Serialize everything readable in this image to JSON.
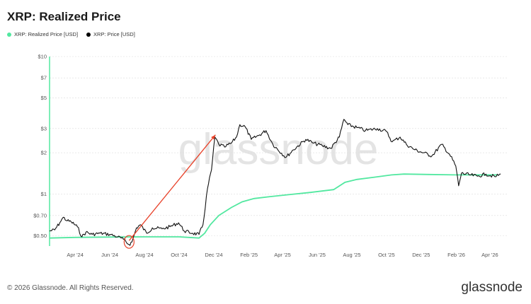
{
  "header": {
    "title": "XRP: Realized Price"
  },
  "legend": [
    {
      "label": "XRP: Realized Price [USD]",
      "color": "#52e8a0"
    },
    {
      "label": "XRP: Price [USD]",
      "color": "#000000"
    }
  ],
  "footer": {
    "copyright": "© 2026 Glassnode. All Rights Reserved.",
    "brand": "glassnode",
    "watermark": "glassnode"
  },
  "colors": {
    "realized": "#52e8a0",
    "price": "#111111",
    "annotation": "#e8422a"
  },
  "chart_data": {
    "type": "line",
    "title": "XRP: Realized Price",
    "y_scale": "log",
    "ylim": [
      0.42,
      10
    ],
    "y_ticks": [
      {
        "value": 10,
        "label": "$10"
      },
      {
        "value": 7,
        "label": "$7"
      },
      {
        "value": 5,
        "label": "$5"
      },
      {
        "value": 3,
        "label": "$3"
      },
      {
        "value": 2,
        "label": "$2"
      },
      {
        "value": 1,
        "label": "$1"
      },
      {
        "value": 0.7,
        "label": "$0.70"
      },
      {
        "value": 0.5,
        "label": "$0.50"
      }
    ],
    "xlim": [
      "2024-02-16",
      "2026-05-01"
    ],
    "x_ticks": [
      {
        "date": "2024-04-01",
        "label": "Apr '24"
      },
      {
        "date": "2024-06-01",
        "label": "Jun '24"
      },
      {
        "date": "2024-08-01",
        "label": "Aug '24"
      },
      {
        "date": "2024-10-01",
        "label": "Oct '24"
      },
      {
        "date": "2024-12-01",
        "label": "Dec '24"
      },
      {
        "date": "2025-02-01",
        "label": "Feb '25"
      },
      {
        "date": "2025-04-01",
        "label": "Apr '25"
      },
      {
        "date": "2025-06-01",
        "label": "Jun '25"
      },
      {
        "date": "2025-08-01",
        "label": "Aug '25"
      },
      {
        "date": "2025-10-01",
        "label": "Oct '25"
      },
      {
        "date": "2025-12-01",
        "label": "Dec '25"
      },
      {
        "date": "2026-02-01",
        "label": "Feb '26"
      },
      {
        "date": "2026-04-01",
        "label": "Apr '26"
      }
    ],
    "series": [
      {
        "name": "XRP: Realized Price [USD]",
        "color": "#52e8a0",
        "points": [
          [
            "2024-02-16",
            0.48
          ],
          [
            "2024-04-01",
            0.485
          ],
          [
            "2024-06-01",
            0.488
          ],
          [
            "2024-08-01",
            0.49
          ],
          [
            "2024-10-01",
            0.49
          ],
          [
            "2024-11-05",
            0.48
          ],
          [
            "2024-11-15",
            0.52
          ],
          [
            "2024-11-25",
            0.6
          ],
          [
            "2024-12-10",
            0.7
          ],
          [
            "2025-01-01",
            0.8
          ],
          [
            "2025-01-20",
            0.88
          ],
          [
            "2025-02-10",
            0.93
          ],
          [
            "2025-03-10",
            0.96
          ],
          [
            "2025-04-10",
            0.99
          ],
          [
            "2025-05-20",
            1.03
          ],
          [
            "2025-06-30",
            1.08
          ],
          [
            "2025-07-20",
            1.22
          ],
          [
            "2025-08-10",
            1.28
          ],
          [
            "2025-09-10",
            1.33
          ],
          [
            "2025-10-10",
            1.38
          ],
          [
            "2025-11-01",
            1.4
          ],
          [
            "2025-12-15",
            1.39
          ],
          [
            "2026-02-01",
            1.38
          ],
          [
            "2026-03-01",
            1.38
          ],
          [
            "2026-04-15",
            1.38
          ]
        ]
      },
      {
        "name": "XRP: Price [USD]",
        "color": "#111111",
        "points": [
          [
            "2024-02-16",
            0.54
          ],
          [
            "2024-02-25",
            0.55
          ],
          [
            "2024-03-05",
            0.62
          ],
          [
            "2024-03-11",
            0.68
          ],
          [
            "2024-03-18",
            0.64
          ],
          [
            "2024-03-25",
            0.63
          ],
          [
            "2024-04-05",
            0.58
          ],
          [
            "2024-04-13",
            0.49
          ],
          [
            "2024-04-20",
            0.53
          ],
          [
            "2024-05-01",
            0.51
          ],
          [
            "2024-05-15",
            0.52
          ],
          [
            "2024-06-01",
            0.51
          ],
          [
            "2024-06-15",
            0.49
          ],
          [
            "2024-06-25",
            0.47
          ],
          [
            "2024-07-05",
            0.43
          ],
          [
            "2024-07-10",
            0.45
          ],
          [
            "2024-07-18",
            0.57
          ],
          [
            "2024-07-25",
            0.6
          ],
          [
            "2024-08-05",
            0.52
          ],
          [
            "2024-08-15",
            0.57
          ],
          [
            "2024-09-01",
            0.56
          ],
          [
            "2024-09-15",
            0.58
          ],
          [
            "2024-09-30",
            0.62
          ],
          [
            "2024-10-10",
            0.54
          ],
          [
            "2024-10-25",
            0.52
          ],
          [
            "2024-11-05",
            0.51
          ],
          [
            "2024-11-12",
            0.6
          ],
          [
            "2024-11-20",
            1.1
          ],
          [
            "2024-11-27",
            1.5
          ],
          [
            "2024-12-03",
            2.6
          ],
          [
            "2024-12-10",
            2.3
          ],
          [
            "2024-12-20",
            2.2
          ],
          [
            "2025-01-01",
            2.35
          ],
          [
            "2025-01-10",
            2.6
          ],
          [
            "2025-01-16",
            3.2
          ],
          [
            "2025-01-25",
            3.1
          ],
          [
            "2025-02-05",
            2.5
          ],
          [
            "2025-02-20",
            2.7
          ],
          [
            "2025-03-03",
            2.9
          ],
          [
            "2025-03-15",
            2.3
          ],
          [
            "2025-04-07",
            1.85
          ],
          [
            "2025-04-20",
            2.1
          ],
          [
            "2025-05-12",
            2.5
          ],
          [
            "2025-05-25",
            2.35
          ],
          [
            "2025-06-10",
            2.25
          ],
          [
            "2025-06-25",
            2.15
          ],
          [
            "2025-07-10",
            2.6
          ],
          [
            "2025-07-18",
            3.5
          ],
          [
            "2025-07-25",
            3.2
          ],
          [
            "2025-08-10",
            3.05
          ],
          [
            "2025-08-25",
            2.9
          ],
          [
            "2025-09-15",
            3.0
          ],
          [
            "2025-10-01",
            2.85
          ],
          [
            "2025-10-11",
            2.4
          ],
          [
            "2025-10-25",
            2.6
          ],
          [
            "2025-11-05",
            2.3
          ],
          [
            "2025-11-20",
            2.1
          ],
          [
            "2025-12-05",
            2.0
          ],
          [
            "2025-12-20",
            1.9
          ],
          [
            "2026-01-06",
            2.3
          ],
          [
            "2026-01-20",
            1.95
          ],
          [
            "2026-01-31",
            1.6
          ],
          [
            "2026-02-05",
            1.15
          ],
          [
            "2026-02-10",
            1.42
          ],
          [
            "2026-02-25",
            1.38
          ],
          [
            "2026-03-10",
            1.35
          ],
          [
            "2026-03-25",
            1.4
          ],
          [
            "2026-04-10",
            1.34
          ],
          [
            "2026-04-20",
            1.4
          ]
        ]
      }
    ],
    "annotation": {
      "type": "arrow",
      "from": [
        "2024-07-05",
        0.46
      ],
      "to": [
        "2024-12-04",
        2.7
      ],
      "circle_at": [
        "2024-07-05",
        0.45
      ],
      "color": "#e8422a"
    }
  }
}
